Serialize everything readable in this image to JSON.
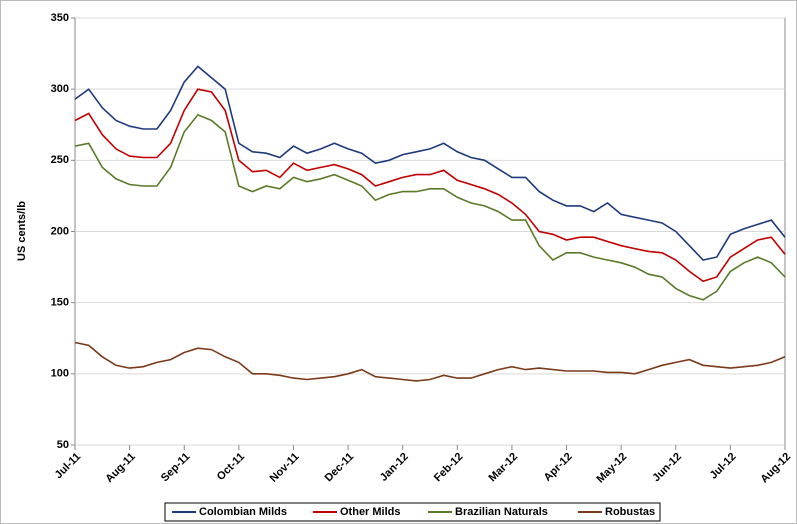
{
  "chart_data": {
    "type": "line",
    "y_label": "US cents/lb",
    "categories": [
      "Jul-11",
      null,
      null,
      null,
      "Aug-11",
      null,
      null,
      null,
      "Sep-11",
      null,
      null,
      null,
      "Oct-11",
      null,
      null,
      null,
      "Nov-11",
      null,
      null,
      null,
      "Dec-11",
      null,
      null,
      null,
      "Jan-12",
      null,
      null,
      null,
      "Feb-12",
      null,
      null,
      null,
      "Mar-12",
      null,
      null,
      null,
      "Apr-12",
      null,
      null,
      null,
      "May-12",
      null,
      null,
      null,
      "Jun-12",
      null,
      null,
      null,
      "Jul-12",
      null,
      null,
      null,
      "Aug-12"
    ],
    "series": [
      {
        "name": "Colombian Milds",
        "color": "#1f3a7a",
        "values": [
          293,
          300,
          287,
          278,
          274,
          272,
          272,
          285,
          305,
          316,
          308,
          300,
          262,
          256,
          255,
          252,
          260,
          255,
          258,
          262,
          258,
          255,
          248,
          250,
          254,
          256,
          258,
          262,
          256,
          252,
          250,
          244,
          238,
          238,
          228,
          222,
          218,
          218,
          214,
          220,
          212,
          210,
          208,
          206,
          200,
          190,
          180,
          182,
          198,
          202,
          205,
          208,
          196
        ]
      },
      {
        "name": "Other Milds",
        "color": "#c00000",
        "values": [
          278,
          283,
          268,
          258,
          253,
          252,
          252,
          262,
          285,
          300,
          298,
          285,
          250,
          242,
          243,
          238,
          248,
          243,
          245,
          247,
          244,
          240,
          232,
          235,
          238,
          240,
          240,
          243,
          236,
          233,
          230,
          226,
          220,
          212,
          200,
          198,
          194,
          196,
          196,
          193,
          190,
          188,
          186,
          185,
          180,
          172,
          165,
          168,
          182,
          188,
          194,
          196,
          184
        ]
      },
      {
        "name": "Brazilian Naturals",
        "color": "#5a7a2a",
        "values": [
          260,
          262,
          245,
          237,
          233,
          232,
          232,
          245,
          270,
          282,
          278,
          270,
          232,
          228,
          232,
          230,
          238,
          235,
          237,
          240,
          236,
          232,
          222,
          226,
          228,
          228,
          230,
          230,
          224,
          220,
          218,
          214,
          208,
          208,
          190,
          180,
          185,
          185,
          182,
          180,
          178,
          175,
          170,
          168,
          160,
          155,
          152,
          158,
          172,
          178,
          182,
          178,
          168
        ]
      },
      {
        "name": "Robustas",
        "color": "#7a3a1a",
        "values": [
          122,
          120,
          112,
          106,
          104,
          105,
          108,
          110,
          115,
          118,
          117,
          112,
          108,
          100,
          100,
          99,
          97,
          96,
          97,
          98,
          100,
          103,
          98,
          97,
          96,
          95,
          96,
          99,
          97,
          97,
          100,
          103,
          105,
          103,
          104,
          103,
          102,
          102,
          102,
          101,
          101,
          100,
          103,
          106,
          108,
          110,
          106,
          105,
          104,
          105,
          106,
          108,
          112
        ]
      }
    ],
    "ylim": [
      50,
      350
    ],
    "yticks": [
      50,
      100,
      150,
      200,
      250,
      300,
      350
    ],
    "grid": true,
    "legend": "bottom"
  }
}
